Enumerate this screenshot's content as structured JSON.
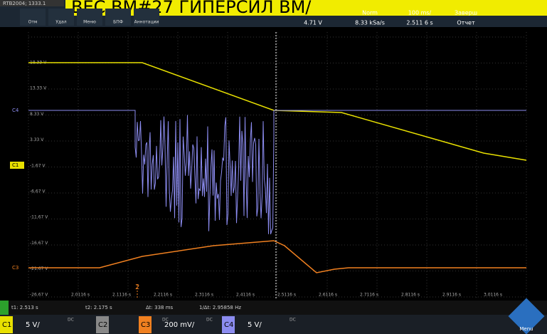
{
  "header": {
    "device": "RTB2004; 1333.1",
    "banner": "ВЕС ВМ#27 ГИПЕРСИЛ ВМ/",
    "tools": [
      "Отм",
      "Удал",
      "Меню",
      "БПФ",
      "Аннотации"
    ],
    "trigger": {
      "mode": "Norm",
      "timebase": "100 ms/",
      "state": "Заверш",
      "level": "4.71 V",
      "rate": "8.33 kSa/s",
      "position": "2.511 6 s",
      "report": "Отчет"
    }
  },
  "display": {
    "y_labels": [
      "18.33 V",
      "13.33 V",
      "8.33 V",
      "3.33 V",
      "-1.67 V",
      "-6.67 V",
      "-11.67 V",
      "-16.67 V",
      "-21.67 V",
      "-26.67 V"
    ],
    "x_labels": [
      "2.0116 s",
      "2.1116 s",
      "2.2116 s",
      "2.3116 s",
      "2.4116 s",
      "2.5116 s",
      "2.6116 s",
      "2.7116 s",
      "2.8116 s",
      "2.9116 s",
      "3.0116 s"
    ],
    "channel_markers": [
      "C4",
      "C1",
      "C3"
    ]
  },
  "cursors": {
    "t1": "t1: 2.513 s",
    "t2": "t2: 2.175 s",
    "dt": "Δt: 338 ms",
    "inv": "1/Δt: 2.95858 Hz"
  },
  "channels": [
    {
      "name": "C1",
      "scale": "5 V/",
      "coupling": "DC"
    },
    {
      "name": "C2",
      "scale": "",
      "coupling": "DC"
    },
    {
      "name": "C3",
      "scale": "200 mV/",
      "coupling": "DC"
    },
    {
      "name": "C4",
      "scale": "5 V/",
      "coupling": "DC"
    }
  ],
  "menu": "Menu"
}
